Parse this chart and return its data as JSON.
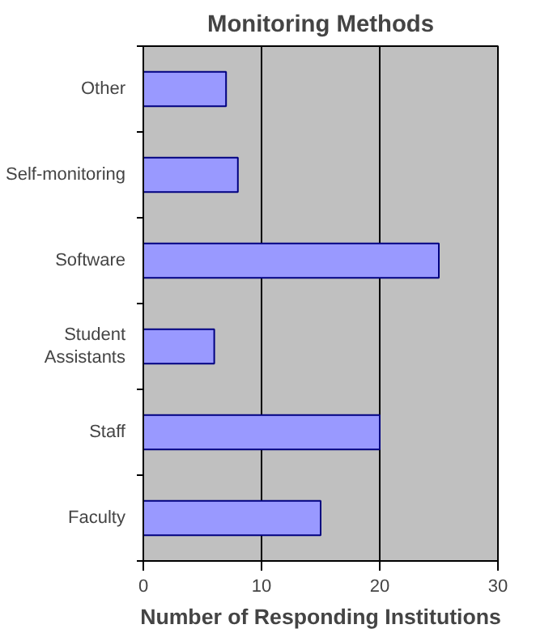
{
  "chart_data": {
    "type": "bar",
    "orientation": "horizontal",
    "title": "Monitoring Methods",
    "xlabel": "Number of Responding Institutions",
    "categories": [
      "Other",
      "Self-monitoring",
      "Software",
      "Student Assistants",
      "Staff",
      "Faculty"
    ],
    "values": [
      7,
      8,
      25,
      6,
      20,
      15
    ],
    "color": "#9999ff",
    "xlim": [
      0,
      30
    ],
    "xticks": [
      0,
      10,
      20,
      30
    ],
    "grid": "x"
  }
}
